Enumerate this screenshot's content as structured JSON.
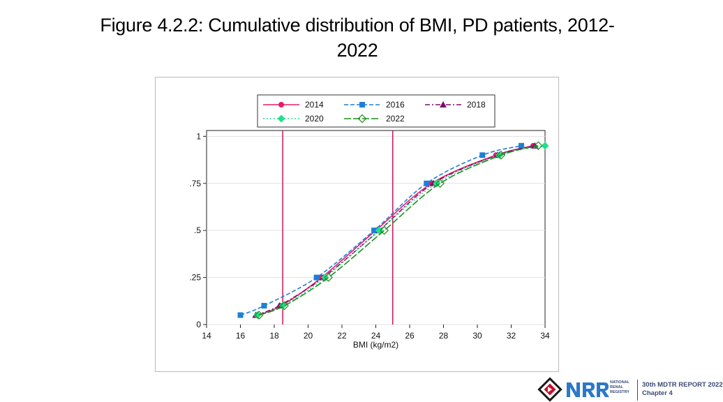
{
  "slide": {
    "title_line1": "Figure 4.2.2: Cumulative distribution of BMI, PD patients, 2012-",
    "title_line2": "2022"
  },
  "chart_data": {
    "type": "line",
    "title": "",
    "xlabel": "BMI (kg/m2)",
    "ylabel": "",
    "xlim": [
      14,
      34
    ],
    "ylim": [
      0,
      1
    ],
    "x_ticks": [
      14,
      16,
      18,
      20,
      22,
      24,
      26,
      28,
      30,
      32,
      34
    ],
    "x_tick_labels": [
      "14",
      "16",
      "18",
      "20",
      "22",
      "24",
      "26",
      "28",
      "30",
      "32",
      "34"
    ],
    "y_ticks": [
      0,
      0.25,
      0.5,
      0.75,
      1
    ],
    "y_tick_labels": [
      "0",
      ".25",
      ".5",
      ".75",
      "1"
    ],
    "grid": "horizontal",
    "legend_position": "top-center",
    "reference_lines_x": [
      18.5,
      25
    ],
    "reference_line_color": "#d1105c",
    "series": [
      {
        "name": "2014",
        "color": "#e8196c",
        "marker": "circle",
        "dash": "solid",
        "points": [
          [
            17.0,
            0.05
          ],
          [
            18.4,
            0.1
          ],
          [
            20.8,
            0.25
          ],
          [
            24.0,
            0.5
          ],
          [
            27.3,
            0.75
          ],
          [
            31.1,
            0.9
          ],
          [
            33.3,
            0.95
          ]
        ]
      },
      {
        "name": "2016",
        "color": "#1e7fd6",
        "marker": "square",
        "dash": "dashed",
        "points": [
          [
            16.0,
            0.05
          ],
          [
            17.4,
            0.1
          ],
          [
            20.5,
            0.25
          ],
          [
            23.9,
            0.5
          ],
          [
            27.0,
            0.75
          ],
          [
            30.3,
            0.9
          ],
          [
            32.6,
            0.95
          ]
        ]
      },
      {
        "name": "2018",
        "color": "#7a0f6b",
        "marker": "triangle",
        "dash": "dashdot",
        "points": [
          [
            16.9,
            0.05
          ],
          [
            18.3,
            0.1
          ],
          [
            20.9,
            0.25
          ],
          [
            24.2,
            0.5
          ],
          [
            27.4,
            0.75
          ],
          [
            31.2,
            0.9
          ],
          [
            33.4,
            0.95
          ]
        ]
      },
      {
        "name": "2020",
        "color": "#1fe08a",
        "marker": "diamond",
        "dash": "dotted",
        "points": [
          [
            17.0,
            0.05
          ],
          [
            18.5,
            0.1
          ],
          [
            21.0,
            0.25
          ],
          [
            24.2,
            0.5
          ],
          [
            27.6,
            0.75
          ],
          [
            31.3,
            0.9
          ],
          [
            34.0,
            0.95
          ]
        ]
      },
      {
        "name": "2022",
        "color": "#1e8c1e",
        "marker": "diamond-open",
        "dash": "longdash",
        "points": [
          [
            17.1,
            0.05
          ],
          [
            18.6,
            0.1
          ],
          [
            21.2,
            0.25
          ],
          [
            24.5,
            0.5
          ],
          [
            27.8,
            0.75
          ],
          [
            31.4,
            0.9
          ],
          [
            33.6,
            0.95
          ]
        ]
      }
    ]
  },
  "footer": {
    "org_line1": "NATIONAL",
    "org_line2": "RENAL",
    "org_line3": "REGISTRY",
    "report_line1": "30th MDTR REPORT 2022",
    "report_line2": "Chapter 4"
  }
}
